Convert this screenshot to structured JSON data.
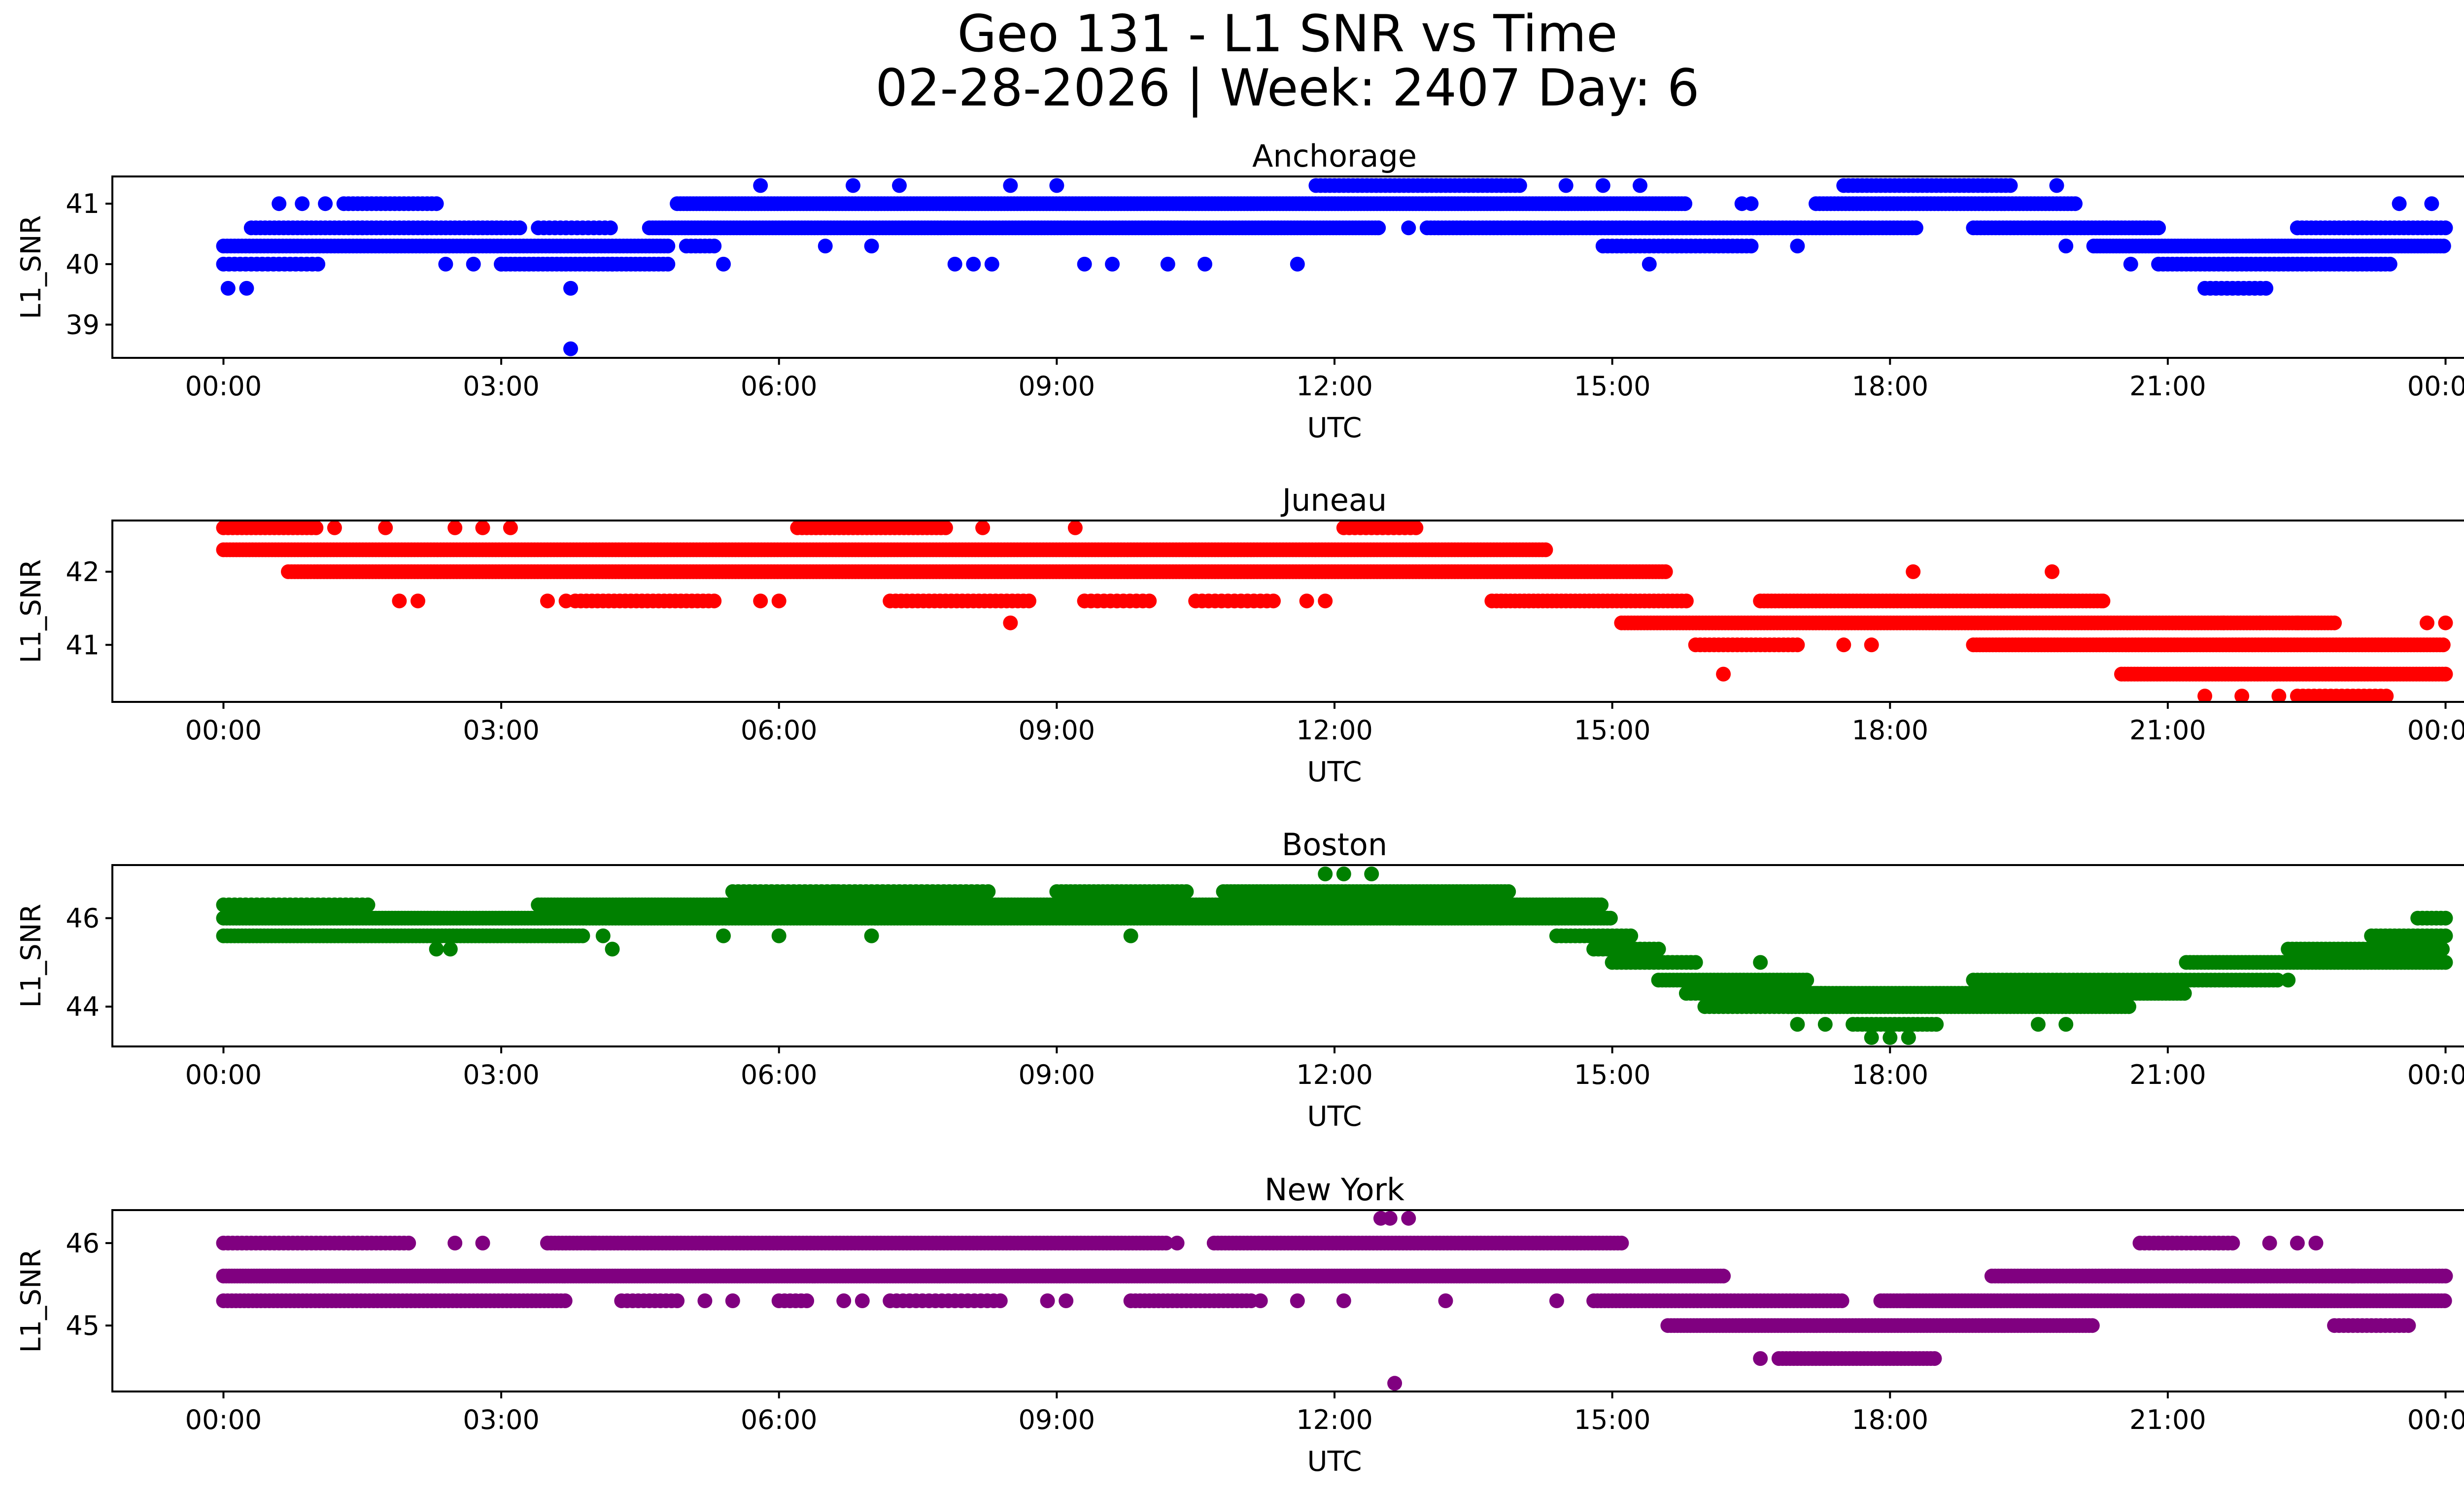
{
  "figure": {
    "title_line1": "Geo 131 - L1 SNR vs Time",
    "title_line2": "02-28-2026 | Week: 2407 Day: 6"
  },
  "chart_data": [
    {
      "type": "scatter",
      "title": "Anchorage",
      "xlabel": "UTC",
      "ylabel": "L1_SNR",
      "color": "#0000ff",
      "xlim_hours": [
        -1.2,
        25.2
      ],
      "ylim": [
        38.45,
        41.45
      ],
      "x_ticks": [
        "00:00",
        "03:00",
        "06:00",
        "09:00",
        "12:00",
        "15:00",
        "18:00",
        "21:00",
        "00:00"
      ],
      "y_ticks": [
        39,
        40,
        41
      ],
      "bands": [
        {
          "y": 40.3,
          "from": 0.0,
          "to": 4.8,
          "step": 0.04
        },
        {
          "y": 40.0,
          "from": 0.0,
          "to": 1.05,
          "step": 0.06
        },
        {
          "y": 40.6,
          "from": 0.3,
          "to": 1.5,
          "step": 0.05
        },
        {
          "y": 41.0,
          "from": 1.3,
          "to": 2.3,
          "step": 0.05
        },
        {
          "y": 40.6,
          "from": 1.5,
          "to": 3.2,
          "step": 0.05
        },
        {
          "y": 40.0,
          "from": 3.0,
          "to": 4.8,
          "step": 0.05
        },
        {
          "y": 40.6,
          "from": 3.4,
          "to": 4.2,
          "step": 0.06
        },
        {
          "y": 40.6,
          "from": 4.6,
          "to": 12.5,
          "step": 0.035
        },
        {
          "y": 41.0,
          "from": 4.9,
          "to": 15.8,
          "step": 0.035
        },
        {
          "y": 40.3,
          "from": 5.0,
          "to": 5.3,
          "step": 0.05
        },
        {
          "y": 41.3,
          "from": 11.8,
          "to": 14.0,
          "step": 0.05
        },
        {
          "y": 40.6,
          "from": 13.0,
          "to": 18.3,
          "step": 0.04
        },
        {
          "y": 40.3,
          "from": 14.9,
          "to": 16.5,
          "step": 0.05
        },
        {
          "y": 41.0,
          "from": 17.2,
          "to": 20.0,
          "step": 0.04
        },
        {
          "y": 41.3,
          "from": 17.5,
          "to": 19.3,
          "step": 0.05
        },
        {
          "y": 40.6,
          "from": 18.9,
          "to": 20.9,
          "step": 0.04
        },
        {
          "y": 40.3,
          "from": 20.2,
          "to": 24.0,
          "step": 0.035
        },
        {
          "y": 40.0,
          "from": 20.9,
          "to": 23.4,
          "step": 0.05
        },
        {
          "y": 39.6,
          "from": 21.4,
          "to": 22.1,
          "step": 0.06
        },
        {
          "y": 40.6,
          "from": 22.4,
          "to": 24.0,
          "step": 0.05
        }
      ],
      "points": [
        [
          0.05,
          39.6
        ],
        [
          0.25,
          39.6
        ],
        [
          0.6,
          41.0
        ],
        [
          0.85,
          41.0
        ],
        [
          1.1,
          41.0
        ],
        [
          2.4,
          40.0
        ],
        [
          2.7,
          40.0
        ],
        [
          3.0,
          40.0
        ],
        [
          3.75,
          39.6
        ],
        [
          3.75,
          38.6
        ],
        [
          4.2,
          40.0
        ],
        [
          5.4,
          40.0
        ],
        [
          5.8,
          41.3
        ],
        [
          6.5,
          40.3
        ],
        [
          6.8,
          41.3
        ],
        [
          7.0,
          40.3
        ],
        [
          7.3,
          41.3
        ],
        [
          7.9,
          40.0
        ],
        [
          8.1,
          40.0
        ],
        [
          8.3,
          40.0
        ],
        [
          8.5,
          41.3
        ],
        [
          9.0,
          41.3
        ],
        [
          9.3,
          40.0
        ],
        [
          9.6,
          40.0
        ],
        [
          10.2,
          40.0
        ],
        [
          10.6,
          40.0
        ],
        [
          11.6,
          40.0
        ],
        [
          12.8,
          40.6
        ],
        [
          14.5,
          41.3
        ],
        [
          14.9,
          41.3
        ],
        [
          15.3,
          41.3
        ],
        [
          15.4,
          40.0
        ],
        [
          16.4,
          41.0
        ],
        [
          16.5,
          41.0
        ],
        [
          17.0,
          40.3
        ],
        [
          19.8,
          41.3
        ],
        [
          19.9,
          40.3
        ],
        [
          20.6,
          40.0
        ],
        [
          22.4,
          40.6
        ],
        [
          23.3,
          40.0
        ],
        [
          23.5,
          41.0
        ],
        [
          23.85,
          41.0
        ]
      ]
    },
    {
      "type": "scatter",
      "title": "Juneau",
      "xlabel": "UTC",
      "ylabel": "L1_SNR",
      "color": "#ff0000",
      "xlim_hours": [
        -1.2,
        25.2
      ],
      "ylim": [
        40.22,
        42.7
      ],
      "x_ticks": [
        "00:00",
        "03:00",
        "06:00",
        "09:00",
        "12:00",
        "15:00",
        "18:00",
        "21:00",
        "00:00"
      ],
      "y_ticks": [
        41,
        42
      ],
      "bands": [
        {
          "y": 42.3,
          "from": 0.0,
          "to": 14.3,
          "step": 0.035
        },
        {
          "y": 42.6,
          "from": 0.0,
          "to": 1.0,
          "step": 0.05
        },
        {
          "y": 42.0,
          "from": 0.7,
          "to": 15.6,
          "step": 0.035
        },
        {
          "y": 42.6,
          "from": 6.2,
          "to": 7.8,
          "step": 0.05
        },
        {
          "y": 41.6,
          "from": 3.8,
          "to": 5.3,
          "step": 0.06
        },
        {
          "y": 41.6,
          "from": 7.2,
          "to": 8.7,
          "step": 0.06
        },
        {
          "y": 41.6,
          "from": 9.3,
          "to": 10.0,
          "step": 0.07
        },
        {
          "y": 41.6,
          "from": 10.5,
          "to": 11.4,
          "step": 0.07
        },
        {
          "y": 42.6,
          "from": 12.1,
          "to": 12.9,
          "step": 0.06
        },
        {
          "y": 41.6,
          "from": 13.7,
          "to": 15.8,
          "step": 0.05
        },
        {
          "y": 41.3,
          "from": 15.1,
          "to": 22.8,
          "step": 0.035
        },
        {
          "y": 41.0,
          "from": 15.9,
          "to": 17.0,
          "step": 0.05
        },
        {
          "y": 41.6,
          "from": 16.6,
          "to": 20.3,
          "step": 0.04
        },
        {
          "y": 41.0,
          "from": 18.9,
          "to": 24.0,
          "step": 0.035
        },
        {
          "y": 40.6,
          "from": 20.5,
          "to": 24.0,
          "step": 0.035
        },
        {
          "y": 40.3,
          "from": 22.4,
          "to": 23.4,
          "step": 0.06
        }
      ],
      "points": [
        [
          1.2,
          42.6
        ],
        [
          1.75,
          42.6
        ],
        [
          1.9,
          41.6
        ],
        [
          2.1,
          41.6
        ],
        [
          2.5,
          42.6
        ],
        [
          2.8,
          42.6
        ],
        [
          3.1,
          42.6
        ],
        [
          3.5,
          41.6
        ],
        [
          3.7,
          41.6
        ],
        [
          5.8,
          41.6
        ],
        [
          6.0,
          41.6
        ],
        [
          8.2,
          42.6
        ],
        [
          8.5,
          41.3
        ],
        [
          9.2,
          42.6
        ],
        [
          9.3,
          41.6
        ],
        [
          11.7,
          41.6
        ],
        [
          11.9,
          41.6
        ],
        [
          16.2,
          40.6
        ],
        [
          17.5,
          41.0
        ],
        [
          17.8,
          41.0
        ],
        [
          18.25,
          42.0
        ],
        [
          19.75,
          42.0
        ],
        [
          20.3,
          41.6
        ],
        [
          21.4,
          40.3
        ],
        [
          21.6,
          41.3
        ],
        [
          21.8,
          40.3
        ],
        [
          22.0,
          41.3
        ],
        [
          22.2,
          40.3
        ],
        [
          22.4,
          41.3
        ],
        [
          23.8,
          41.3
        ],
        [
          24.0,
          41.3
        ]
      ]
    },
    {
      "type": "scatter",
      "title": "Boston",
      "xlabel": "UTC",
      "ylabel": "L1_SNR",
      "color": "#008000",
      "xlim_hours": [
        -1.2,
        25.2
      ],
      "ylim": [
        43.1,
        47.2
      ],
      "x_ticks": [
        "00:00",
        "03:00",
        "06:00",
        "09:00",
        "12:00",
        "15:00",
        "18:00",
        "21:00",
        "00:00"
      ],
      "y_ticks": [
        44,
        46
      ],
      "bands": [
        {
          "y": 46.0,
          "from": 0.0,
          "to": 15.0,
          "step": 0.035
        },
        {
          "y": 45.6,
          "from": 0.0,
          "to": 3.9,
          "step": 0.04
        },
        {
          "y": 46.3,
          "from": 0.0,
          "to": 1.6,
          "step": 0.06
        },
        {
          "y": 46.3,
          "from": 3.4,
          "to": 14.9,
          "step": 0.035
        },
        {
          "y": 46.6,
          "from": 5.5,
          "to": 8.3,
          "step": 0.06
        },
        {
          "y": 46.6,
          "from": 9.0,
          "to": 10.4,
          "step": 0.05
        },
        {
          "y": 46.6,
          "from": 10.8,
          "to": 13.9,
          "step": 0.04
        },
        {
          "y": 45.6,
          "from": 14.4,
          "to": 15.2,
          "step": 0.05
        },
        {
          "y": 45.3,
          "from": 14.8,
          "to": 15.5,
          "step": 0.05
        },
        {
          "y": 45.0,
          "from": 15.0,
          "to": 15.9,
          "step": 0.05
        },
        {
          "y": 44.6,
          "from": 15.5,
          "to": 17.1,
          "step": 0.04
        },
        {
          "y": 44.3,
          "from": 15.8,
          "to": 17.3,
          "step": 0.05
        },
        {
          "y": 44.0,
          "from": 16.0,
          "to": 16.9,
          "step": 0.05
        },
        {
          "y": 44.3,
          "from": 16.9,
          "to": 21.2,
          "step": 0.04
        },
        {
          "y": 44.0,
          "from": 16.9,
          "to": 20.6,
          "step": 0.04
        },
        {
          "y": 43.6,
          "from": 17.6,
          "to": 18.5,
          "step": 0.05
        },
        {
          "y": 44.6,
          "from": 18.9,
          "to": 22.2,
          "step": 0.045
        },
        {
          "y": 45.0,
          "from": 21.2,
          "to": 24.0,
          "step": 0.04
        },
        {
          "y": 45.3,
          "from": 22.3,
          "to": 24.0,
          "step": 0.045
        },
        {
          "y": 45.6,
          "from": 23.2,
          "to": 24.0,
          "step": 0.05
        },
        {
          "y": 46.0,
          "from": 23.7,
          "to": 24.0,
          "step": 0.05
        }
      ],
      "points": [
        [
          2.3,
          45.3
        ],
        [
          2.45,
          45.3
        ],
        [
          4.2,
          45.3
        ],
        [
          4.1,
          45.6
        ],
        [
          5.4,
          45.6
        ],
        [
          6.0,
          45.6
        ],
        [
          6.6,
          46.6
        ],
        [
          7.0,
          45.6
        ],
        [
          9.8,
          45.6
        ],
        [
          11.9,
          47.0
        ],
        [
          12.1,
          47.0
        ],
        [
          12.4,
          47.0
        ],
        [
          12.7,
          46.0
        ],
        [
          16.6,
          45.0
        ],
        [
          17.0,
          43.6
        ],
        [
          17.3,
          43.6
        ],
        [
          17.8,
          43.3
        ],
        [
          18.0,
          43.3
        ],
        [
          18.2,
          43.3
        ],
        [
          18.2,
          43.3
        ],
        [
          19.6,
          43.6
        ],
        [
          19.9,
          43.6
        ],
        [
          22.3,
          44.6
        ]
      ]
    },
    {
      "type": "scatter",
      "title": "New York",
      "xlabel": "UTC",
      "ylabel": "L1_SNR",
      "color": "#800080",
      "xlim_hours": [
        -1.2,
        25.2
      ],
      "ylim": [
        44.2,
        46.4
      ],
      "x_ticks": [
        "00:00",
        "03:00",
        "06:00",
        "09:00",
        "12:00",
        "15:00",
        "18:00",
        "21:00",
        "00:00"
      ],
      "y_ticks": [
        45,
        46
      ],
      "bands": [
        {
          "y": 45.6,
          "from": 0.0,
          "to": 16.2,
          "step": 0.03
        },
        {
          "y": 45.3,
          "from": 0.0,
          "to": 3.7,
          "step": 0.045
        },
        {
          "y": 46.0,
          "from": 0.0,
          "to": 2.0,
          "step": 0.05
        },
        {
          "y": 46.0,
          "from": 3.5,
          "to": 10.2,
          "step": 0.04
        },
        {
          "y": 46.0,
          "from": 10.7,
          "to": 15.1,
          "step": 0.04
        },
        {
          "y": 45.3,
          "from": 4.3,
          "to": 4.9,
          "step": 0.06
        },
        {
          "y": 45.3,
          "from": 6.0,
          "to": 6.3,
          "step": 0.06
        },
        {
          "y": 45.3,
          "from": 7.2,
          "to": 8.4,
          "step": 0.07
        },
        {
          "y": 45.3,
          "from": 9.8,
          "to": 11.1,
          "step": 0.05
        },
        {
          "y": 45.3,
          "from": 14.8,
          "to": 17.5,
          "step": 0.04
        },
        {
          "y": 45.0,
          "from": 15.6,
          "to": 20.2,
          "step": 0.035
        },
        {
          "y": 44.6,
          "from": 16.8,
          "to": 18.5,
          "step": 0.04
        },
        {
          "y": 45.3,
          "from": 17.9,
          "to": 24.0,
          "step": 0.035
        },
        {
          "y": 45.6,
          "from": 19.1,
          "to": 24.0,
          "step": 0.035
        },
        {
          "y": 46.0,
          "from": 20.7,
          "to": 21.7,
          "step": 0.05
        },
        {
          "y": 45.0,
          "from": 22.8,
          "to": 23.6,
          "step": 0.05
        }
      ],
      "points": [
        [
          2.5,
          46.0
        ],
        [
          2.8,
          46.0
        ],
        [
          4.0,
          46.0
        ],
        [
          5.2,
          45.3
        ],
        [
          5.5,
          45.3
        ],
        [
          6.7,
          45.3
        ],
        [
          6.9,
          45.3
        ],
        [
          8.9,
          45.3
        ],
        [
          9.1,
          45.3
        ],
        [
          10.3,
          46.0
        ],
        [
          11.2,
          45.3
        ],
        [
          11.6,
          45.3
        ],
        [
          12.1,
          45.3
        ],
        [
          12.5,
          46.3
        ],
        [
          12.6,
          46.3
        ],
        [
          12.65,
          44.3
        ],
        [
          12.8,
          46.3
        ],
        [
          13.2,
          45.3
        ],
        [
          14.4,
          45.3
        ],
        [
          16.6,
          44.6
        ],
        [
          18.2,
          45.3
        ],
        [
          22.1,
          46.0
        ],
        [
          22.4,
          46.0
        ],
        [
          22.6,
          46.0
        ],
        [
          23.0,
          45.6
        ]
      ]
    }
  ]
}
